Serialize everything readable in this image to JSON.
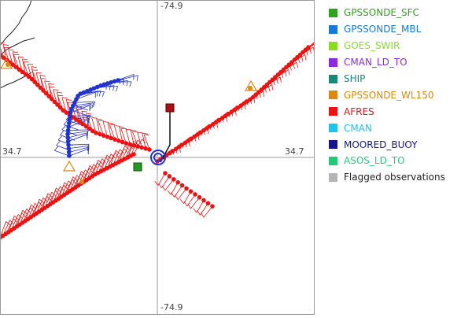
{
  "map": {
    "center_lon": "-74.9",
    "center_lat": "34.7",
    "top_label": "-74.9",
    "bottom_label": "-74.9",
    "left_label": "34.7",
    "right_label": "34.7",
    "colors": {
      "afres": "#ee1111",
      "moored_buoy": "#2233cc",
      "gpssonde_wl150": "#dd8811",
      "gpssonde_sfc": "#229922",
      "coastline": "#222222",
      "axis": "#999999"
    }
  },
  "legend": {
    "items": [
      {
        "label": "GPSSONDE_SFC",
        "color": "#2fa31a"
      },
      {
        "label": "GPSSONDE_MBL",
        "color": "#1a78d6"
      },
      {
        "label": "GOES_SWIR",
        "color": "#88dd22"
      },
      {
        "label": "CMAN_LD_TO",
        "color": "#8a2be2"
      },
      {
        "label": "SHIP",
        "color": "#138a7a"
      },
      {
        "label": "GPSSONDE_WL150",
        "color": "#dd8811"
      },
      {
        "label": "AFRES",
        "color": "#ee1111"
      },
      {
        "label": "CMAN",
        "color": "#1ec3ee"
      },
      {
        "label": "MOORED_BUOY",
        "color": "#14148c"
      },
      {
        "label": "ASOS_LD_TO",
        "color": "#22cc77"
      },
      {
        "label": "Flagged observations",
        "color": "#b4b4b4"
      }
    ]
  }
}
